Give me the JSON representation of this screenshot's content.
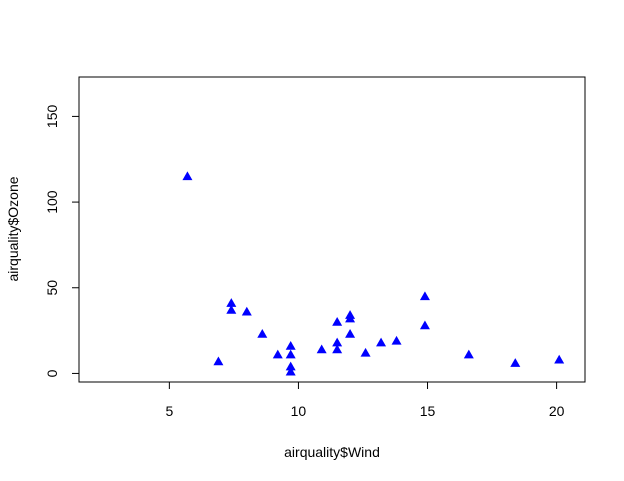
{
  "chart_data": {
    "type": "scatter",
    "title": "",
    "xlabel": "airquality$Wind",
    "ylabel": "airquality$Ozone",
    "xlim": [
      1.5,
      21.1
    ],
    "ylim": [
      -5,
      173
    ],
    "x_ticks": [
      5,
      10,
      15,
      20
    ],
    "y_ticks": [
      0,
      50,
      100,
      150
    ],
    "x_tick_labels": [
      "5",
      "10",
      "15",
      "20"
    ],
    "y_tick_labels": [
      "0",
      "50",
      "100",
      "150"
    ],
    "grid": false,
    "marker": "filled-triangle",
    "marker_color": "#0000FF",
    "series": [
      {
        "points": [
          [
            5.7,
            115
          ],
          [
            6.9,
            7
          ],
          [
            7.4,
            41
          ],
          [
            7.4,
            37
          ],
          [
            8.0,
            36
          ],
          [
            8.6,
            23
          ],
          [
            9.2,
            11
          ],
          [
            9.7,
            16
          ],
          [
            9.7,
            11
          ],
          [
            9.7,
            4
          ],
          [
            9.7,
            1
          ],
          [
            10.9,
            14
          ],
          [
            11.5,
            30
          ],
          [
            11.5,
            18
          ],
          [
            11.5,
            14
          ],
          [
            12.0,
            34
          ],
          [
            12.0,
            32
          ],
          [
            12.0,
            23
          ],
          [
            12.6,
            12
          ],
          [
            13.2,
            18
          ],
          [
            13.8,
            19
          ],
          [
            14.9,
            45
          ],
          [
            14.9,
            28
          ],
          [
            16.6,
            11
          ],
          [
            18.4,
            6
          ],
          [
            20.1,
            8
          ]
        ]
      }
    ]
  }
}
